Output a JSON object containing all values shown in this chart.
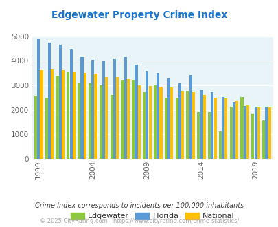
{
  "title": "Edgewater Property Crime Index",
  "title_color": "#1874cd",
  "years": [
    1999,
    2000,
    2001,
    2002,
    2003,
    2004,
    2005,
    2006,
    2007,
    2008,
    2009,
    2010,
    2011,
    2012,
    2013,
    2014,
    2015,
    2016,
    2017,
    2018,
    2019,
    2020
  ],
  "edgewater": [
    2580,
    2500,
    3390,
    3550,
    3110,
    3090,
    3000,
    2600,
    3230,
    3230,
    2730,
    3020,
    2500,
    2510,
    2790,
    1920,
    1920,
    1130,
    2130,
    2530,
    1850,
    1580
  ],
  "florida": [
    4900,
    4750,
    4660,
    4480,
    4160,
    4030,
    4000,
    4080,
    4140,
    3850,
    3600,
    3500,
    3280,
    3100,
    3420,
    2810,
    2720,
    2530,
    2300,
    2160,
    2130,
    2130
  ],
  "national": [
    3610,
    3660,
    3610,
    3570,
    3510,
    3490,
    3350,
    3330,
    3260,
    3000,
    2980,
    2950,
    2910,
    2740,
    2730,
    2600,
    2490,
    2460,
    2360,
    2200,
    2110,
    2110
  ],
  "edgewater_color": "#8dc63f",
  "florida_color": "#5b9bd5",
  "national_color": "#ffc000",
  "bg_color": "#e8f4f8",
  "ylim": [
    0,
    5000
  ],
  "yticks": [
    0,
    1000,
    2000,
    3000,
    4000,
    5000
  ],
  "xlabel_years": [
    1999,
    2004,
    2009,
    2014,
    2019
  ],
  "footnote1": "Crime Index corresponds to incidents per 100,000 inhabitants",
  "footnote2": "© 2025 CityRating.com - https://www.cityrating.com/crime-statistics/",
  "footnote1_color": "#444444",
  "footnote2_color": "#aaaaaa"
}
